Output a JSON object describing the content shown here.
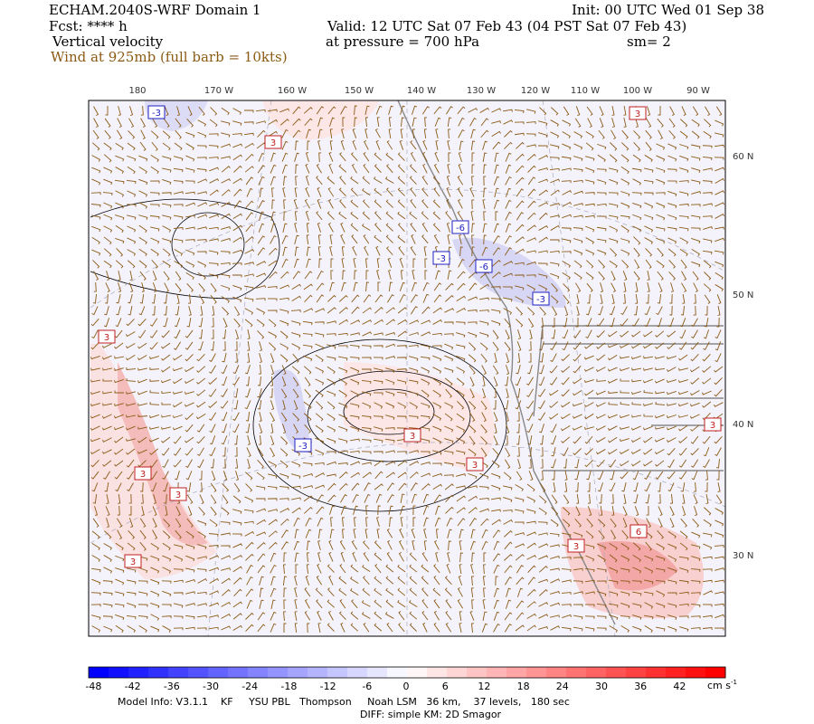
{
  "header": {
    "title": "ECHAM.2040S-WRF Domain 1",
    "forecast": "Fcst: **** h",
    "field": "Vertical velocity",
    "wind": "Wind at 925mb (full barb = 10kts)",
    "init": "Init: 00 UTC Wed 01 Sep 38",
    "valid": "Valid: 12 UTC Sat 07 Feb 43 (04 PST Sat 07 Feb 43)",
    "pressure": "at pressure =  700 hPa",
    "smoothing": "sm= 2"
  },
  "map": {
    "longitude_labels": [
      "180",
      "170 W",
      "160 W",
      "150 W",
      "140 W",
      "130 W",
      "120 W",
      "110 W",
      "100 W",
      "90 W"
    ],
    "latitude_labels": [
      "60 N",
      "50 N",
      "40 N",
      "30 N"
    ],
    "contour_labels": [
      "-3",
      "3",
      "3",
      "-6",
      "-3",
      "-6",
      "-3",
      "3",
      "3",
      "3",
      "3",
      "3",
      "-3",
      "3",
      "3",
      "6",
      "3"
    ]
  },
  "colorbar": {
    "labels": [
      -48,
      -42,
      -36,
      -30,
      -24,
      -18,
      -12,
      -6,
      0,
      6,
      12,
      18,
      24,
      30,
      36,
      42
    ],
    "units": "cm s",
    "units_superscript": "-1"
  },
  "footer": {
    "model_info": "Model Info: V3.1.1    KF     YSU PBL   Thompson     Noah LSM   36 km,    37 levels,   180 sec",
    "diff": "DIFF: simple KM: 2D Smagor"
  }
}
